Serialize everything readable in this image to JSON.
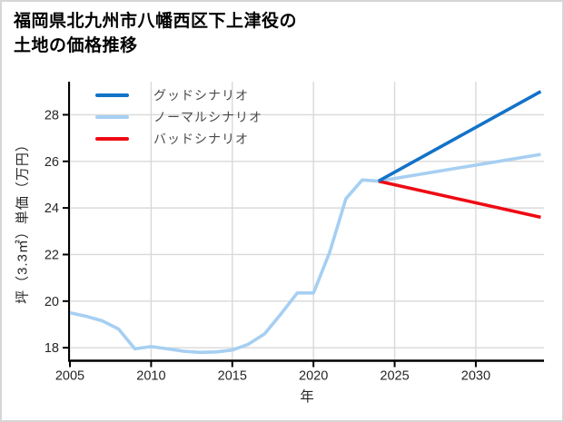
{
  "title": {
    "line1": "福岡県北九州市八幡西区下上津役の",
    "line2": "土地の価格推移"
  },
  "chart_data": {
    "type": "line",
    "title": "福岡県北九州市八幡西区下上津役の土地の価格推移",
    "xlabel": "年",
    "ylabel": "坪（3.3㎡）単価（万円）",
    "x_ticks": [
      "2005",
      "2010",
      "2015",
      "2020",
      "2025",
      "2030"
    ],
    "x_tick_values": [
      2005,
      2010,
      2015,
      2020,
      2025,
      2030
    ],
    "y_ticks": [
      "18",
      "20",
      "22",
      "24",
      "26",
      "28"
    ],
    "y_tick_values": [
      18,
      20,
      22,
      24,
      26,
      28
    ],
    "xlim": [
      2005,
      2034.2
    ],
    "ylim": [
      17.48,
      29.42
    ],
    "grid": true,
    "legend_position": "upper-left",
    "series": [
      {
        "name": "グッドシナリオ",
        "color": "#1372c8",
        "x": [
          2024,
          2034
        ],
        "y": [
          25.15,
          29.0
        ]
      },
      {
        "name": "ノーマルシナリオ",
        "color": "#a6cff2",
        "x": [
          2005,
          2006,
          2007,
          2008,
          2009,
          2010,
          2011,
          2012,
          2013,
          2014,
          2015,
          2016,
          2017,
          2018,
          2019,
          2020,
          2021,
          2022,
          2023,
          2024,
          2034
        ],
        "y": [
          19.5,
          19.35,
          19.15,
          18.8,
          17.95,
          18.05,
          17.95,
          17.85,
          17.8,
          17.82,
          17.9,
          18.15,
          18.6,
          19.45,
          20.35,
          20.35,
          22.1,
          24.4,
          25.2,
          25.15,
          26.3
        ]
      },
      {
        "name": "バッドシナリオ",
        "color": "#ee0b14",
        "x": [
          2024,
          2034
        ],
        "y": [
          25.15,
          23.6
        ]
      }
    ]
  },
  "colors": {
    "grid": "#d9d9d9",
    "axis": "#000000",
    "tick_label": "#262626",
    "legend_text": "#4a4a4a"
  }
}
